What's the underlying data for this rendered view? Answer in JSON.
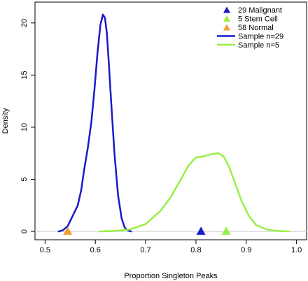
{
  "chart_data": {
    "type": "line",
    "xlabel": "Proportion Singleton Peaks",
    "ylabel": "Density",
    "xlim": [
      0.48,
      1.02
    ],
    "ylim": [
      -0.8,
      22
    ],
    "x_ticks": [
      "0.5",
      "0.6",
      "0.7",
      "0.8",
      "0.9",
      "1.0"
    ],
    "y_ticks": [
      "0",
      "5",
      "10",
      "15",
      "20"
    ],
    "grid": false,
    "legend_position": "top-right",
    "baseline": {
      "y": 0,
      "color": "#cccccc"
    },
    "series": [
      {
        "name": "Sample n=29",
        "color": "#1a1acc",
        "x": [
          0.527,
          0.535,
          0.545,
          0.555,
          0.565,
          0.572,
          0.578,
          0.585,
          0.592,
          0.598,
          0.604,
          0.61,
          0.615,
          0.619,
          0.623,
          0.627,
          0.632,
          0.638,
          0.645,
          0.652,
          0.658,
          0.663,
          0.667,
          0.671
        ],
        "y": [
          0.0,
          0.1,
          0.5,
          1.5,
          2.5,
          4.0,
          6.0,
          8.0,
          10.5,
          13.5,
          17.0,
          19.8,
          20.8,
          20.5,
          19.0,
          16.0,
          12.0,
          7.5,
          3.5,
          1.3,
          0.4,
          0.15,
          0.05,
          0.0
        ]
      },
      {
        "name": "Sample n=5",
        "color": "#99ee44",
        "x": [
          0.608,
          0.64,
          0.67,
          0.7,
          0.73,
          0.75,
          0.77,
          0.785,
          0.8,
          0.815,
          0.83,
          0.845,
          0.855,
          0.865,
          0.875,
          0.89,
          0.905,
          0.92,
          0.94,
          0.96,
          0.985
        ],
        "y": [
          0.0,
          0.05,
          0.2,
          0.7,
          2.0,
          3.3,
          5.0,
          6.3,
          7.1,
          7.2,
          7.4,
          7.5,
          7.2,
          6.3,
          5.0,
          3.0,
          1.5,
          0.6,
          0.2,
          0.05,
          0.0
        ]
      }
    ],
    "markers": [
      {
        "name": "29 Malignant",
        "color": "#1a1acc",
        "x": 0.81,
        "y": 0
      },
      {
        "name": "5 Stem Cell",
        "color": "#99ee44",
        "x": 0.86,
        "y": 0
      },
      {
        "name": "58 Normal",
        "color": "#f0a030",
        "x": 0.545,
        "y": 0
      }
    ],
    "legend": [
      {
        "label": "29 Malignant",
        "kind": "triangle",
        "color": "#1a1acc"
      },
      {
        "label": "5 Stem Cell",
        "kind": "triangle",
        "color": "#99ee44"
      },
      {
        "label": "58 Normal",
        "kind": "triangle",
        "color": "#f0a030"
      },
      {
        "label": "Sample n=29",
        "kind": "line",
        "color": "#1a1acc"
      },
      {
        "label": "Sample n=5",
        "kind": "line",
        "color": "#99ee44"
      }
    ]
  }
}
